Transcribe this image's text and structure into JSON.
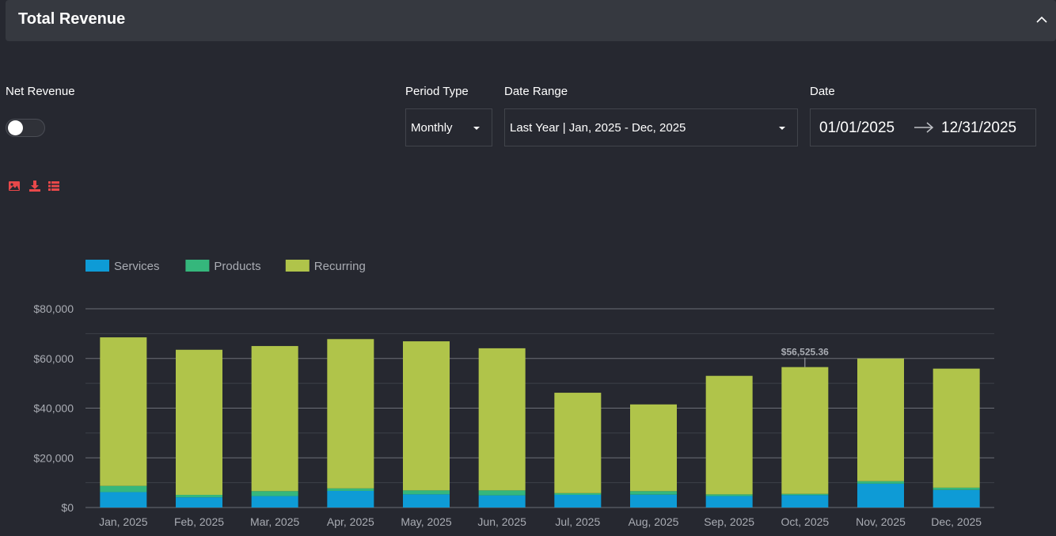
{
  "header": {
    "title": "Total Revenue"
  },
  "controls": {
    "net_revenue_label": "Net Revenue",
    "net_revenue_on": false,
    "period_type_label": "Period Type",
    "period_type_value": "Monthly",
    "date_range_label": "Date Range",
    "date_range_value": "Last Year | Jan, 2025 - Dec, 2025",
    "date_label": "Date",
    "date_start": "01/01/2025",
    "date_end": "12/31/2025"
  },
  "toolbar": {
    "icons": [
      "image-icon",
      "download-icon",
      "list-icon"
    ],
    "accent": "#e8484a"
  },
  "chart_data": {
    "type": "bar",
    "stacked": true,
    "categories": [
      "Jan, 2025",
      "Feb, 2025",
      "Mar, 2025",
      "Apr, 2025",
      "May, 2025",
      "Jun, 2025",
      "Jul, 2025",
      "Aug, 2025",
      "Sep, 2025",
      "Oct, 2025",
      "Nov, 2025",
      "Dec, 2025"
    ],
    "series": [
      {
        "name": "Services",
        "color": "#0e9bd6",
        "values": [
          6200,
          4100,
          4600,
          6700,
          5300,
          4900,
          5100,
          5200,
          4600,
          5000,
          9600,
          7100
        ]
      },
      {
        "name": "Products",
        "color": "#35b77c",
        "values": [
          2500,
          1000,
          2000,
          1000,
          1600,
          2000,
          700,
          1400,
          700,
          500,
          1000,
          900
        ]
      },
      {
        "name": "Recurring",
        "color": "#b0c44a",
        "values": [
          59800,
          58400,
          58400,
          60100,
          60000,
          57200,
          40400,
          34900,
          47700,
          51025.36,
          49400,
          47900
        ]
      }
    ],
    "ylim": [
      0,
      80000
    ],
    "yticks": [
      "$0",
      "$20,000",
      "$40,000",
      "$60,000",
      "$80,000"
    ],
    "ytick_values": [
      0,
      20000,
      40000,
      60000,
      80000
    ],
    "legend_position": "top-left",
    "annotation": {
      "category": "Oct, 2025",
      "label": "$56,525.36"
    },
    "grid": true
  }
}
